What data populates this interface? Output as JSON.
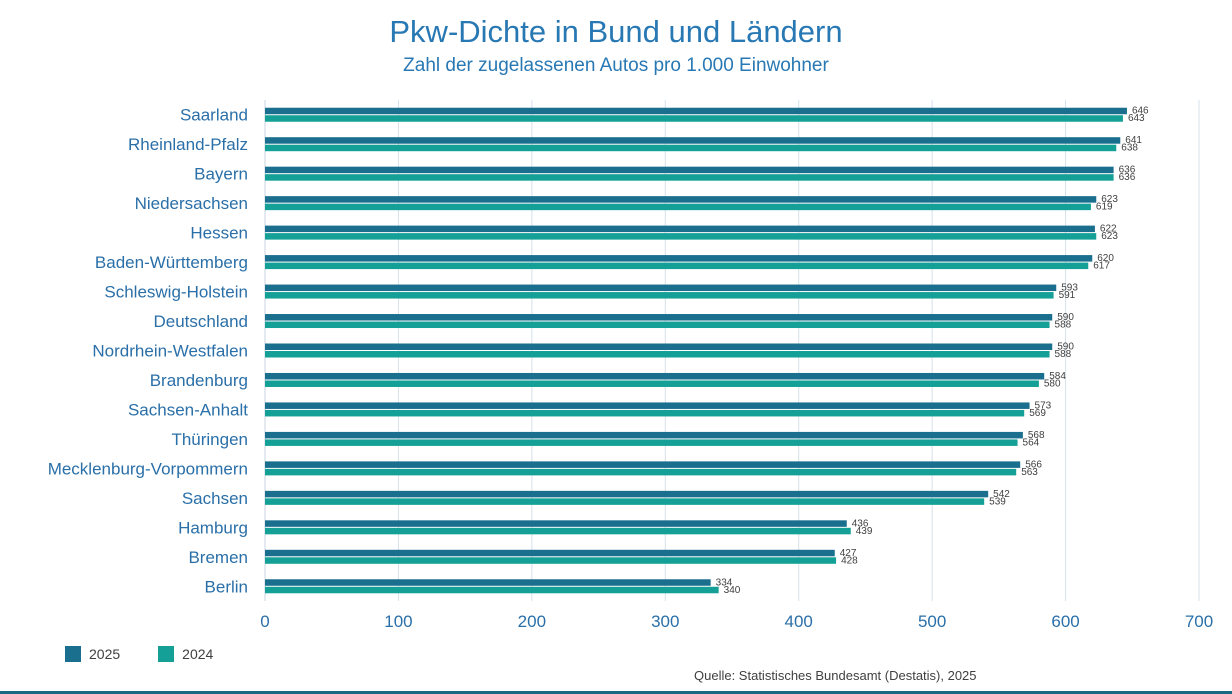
{
  "title": "Pkw-Dichte in Bund und Ländern",
  "subtitle": "Zahl der zugelassenen Autos pro 1.000 Einwohner",
  "source": "Quelle: Statistisches Bundesamt (Destatis), 2025",
  "colors": {
    "2025": "#1a6e8e",
    "2024": "#14a096",
    "grid": "#d6e2ea"
  },
  "chart_data": {
    "type": "bar",
    "orientation": "horizontal",
    "categories": [
      "Saarland",
      "Rheinland-Pfalz",
      "Bayern",
      "Niedersachsen",
      "Hessen",
      "Baden-Württemberg",
      "Schleswig-Holstein",
      "Deutschland",
      "Nordrhein-Westfalen",
      "Brandenburg",
      "Sachsen-Anhalt",
      "Thüringen",
      "Mecklenburg-Vorpommern",
      "Sachsen",
      "Hamburg",
      "Bremen",
      "Berlin"
    ],
    "series": [
      {
        "name": "2025",
        "values": [
          646,
          641,
          636,
          623,
          622,
          620,
          593,
          590,
          590,
          584,
          573,
          568,
          566,
          542,
          436,
          427,
          334
        ]
      },
      {
        "name": "2024",
        "values": [
          643,
          638,
          636,
          619,
          623,
          617,
          591,
          588,
          588,
          580,
          569,
          564,
          563,
          539,
          439,
          428,
          340
        ]
      }
    ],
    "xlim": [
      0,
      700
    ],
    "xticks": [
      0,
      100,
      200,
      300,
      400,
      500,
      600,
      700
    ],
    "grid": true,
    "legend": "bottom-left"
  }
}
